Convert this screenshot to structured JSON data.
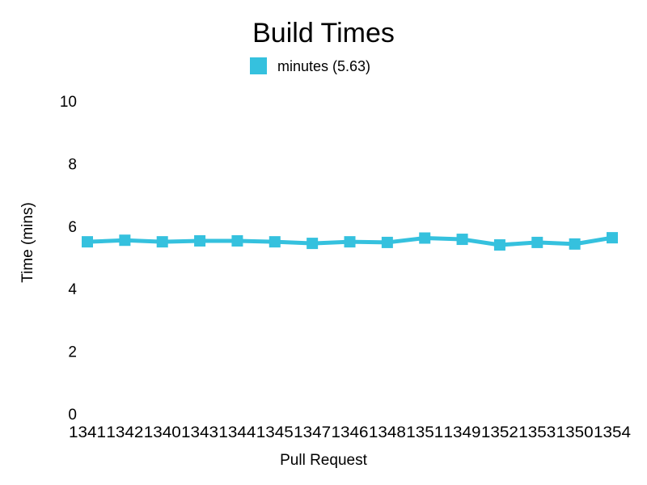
{
  "chart_data": {
    "type": "line",
    "title": "Build Times",
    "xlabel": "Pull Request",
    "ylabel": "Time (mins)",
    "ylim": [
      0,
      10
    ],
    "yticks": [
      "0",
      "2",
      "4",
      "6",
      "8",
      "10"
    ],
    "grid": false,
    "legend_position": "top-center",
    "categories": [
      "1341",
      "1342",
      "1340",
      "1343",
      "1344",
      "1345",
      "1347",
      "1346",
      "1348",
      "1351",
      "1349",
      "1352",
      "1353",
      "1350",
      "1354"
    ],
    "series": [
      {
        "name": "minutes (5.63)",
        "color": "#35C1DE",
        "values": [
          5.5,
          5.55,
          5.5,
          5.53,
          5.53,
          5.5,
          5.45,
          5.5,
          5.48,
          5.62,
          5.58,
          5.4,
          5.48,
          5.43,
          5.63
        ]
      }
    ]
  }
}
